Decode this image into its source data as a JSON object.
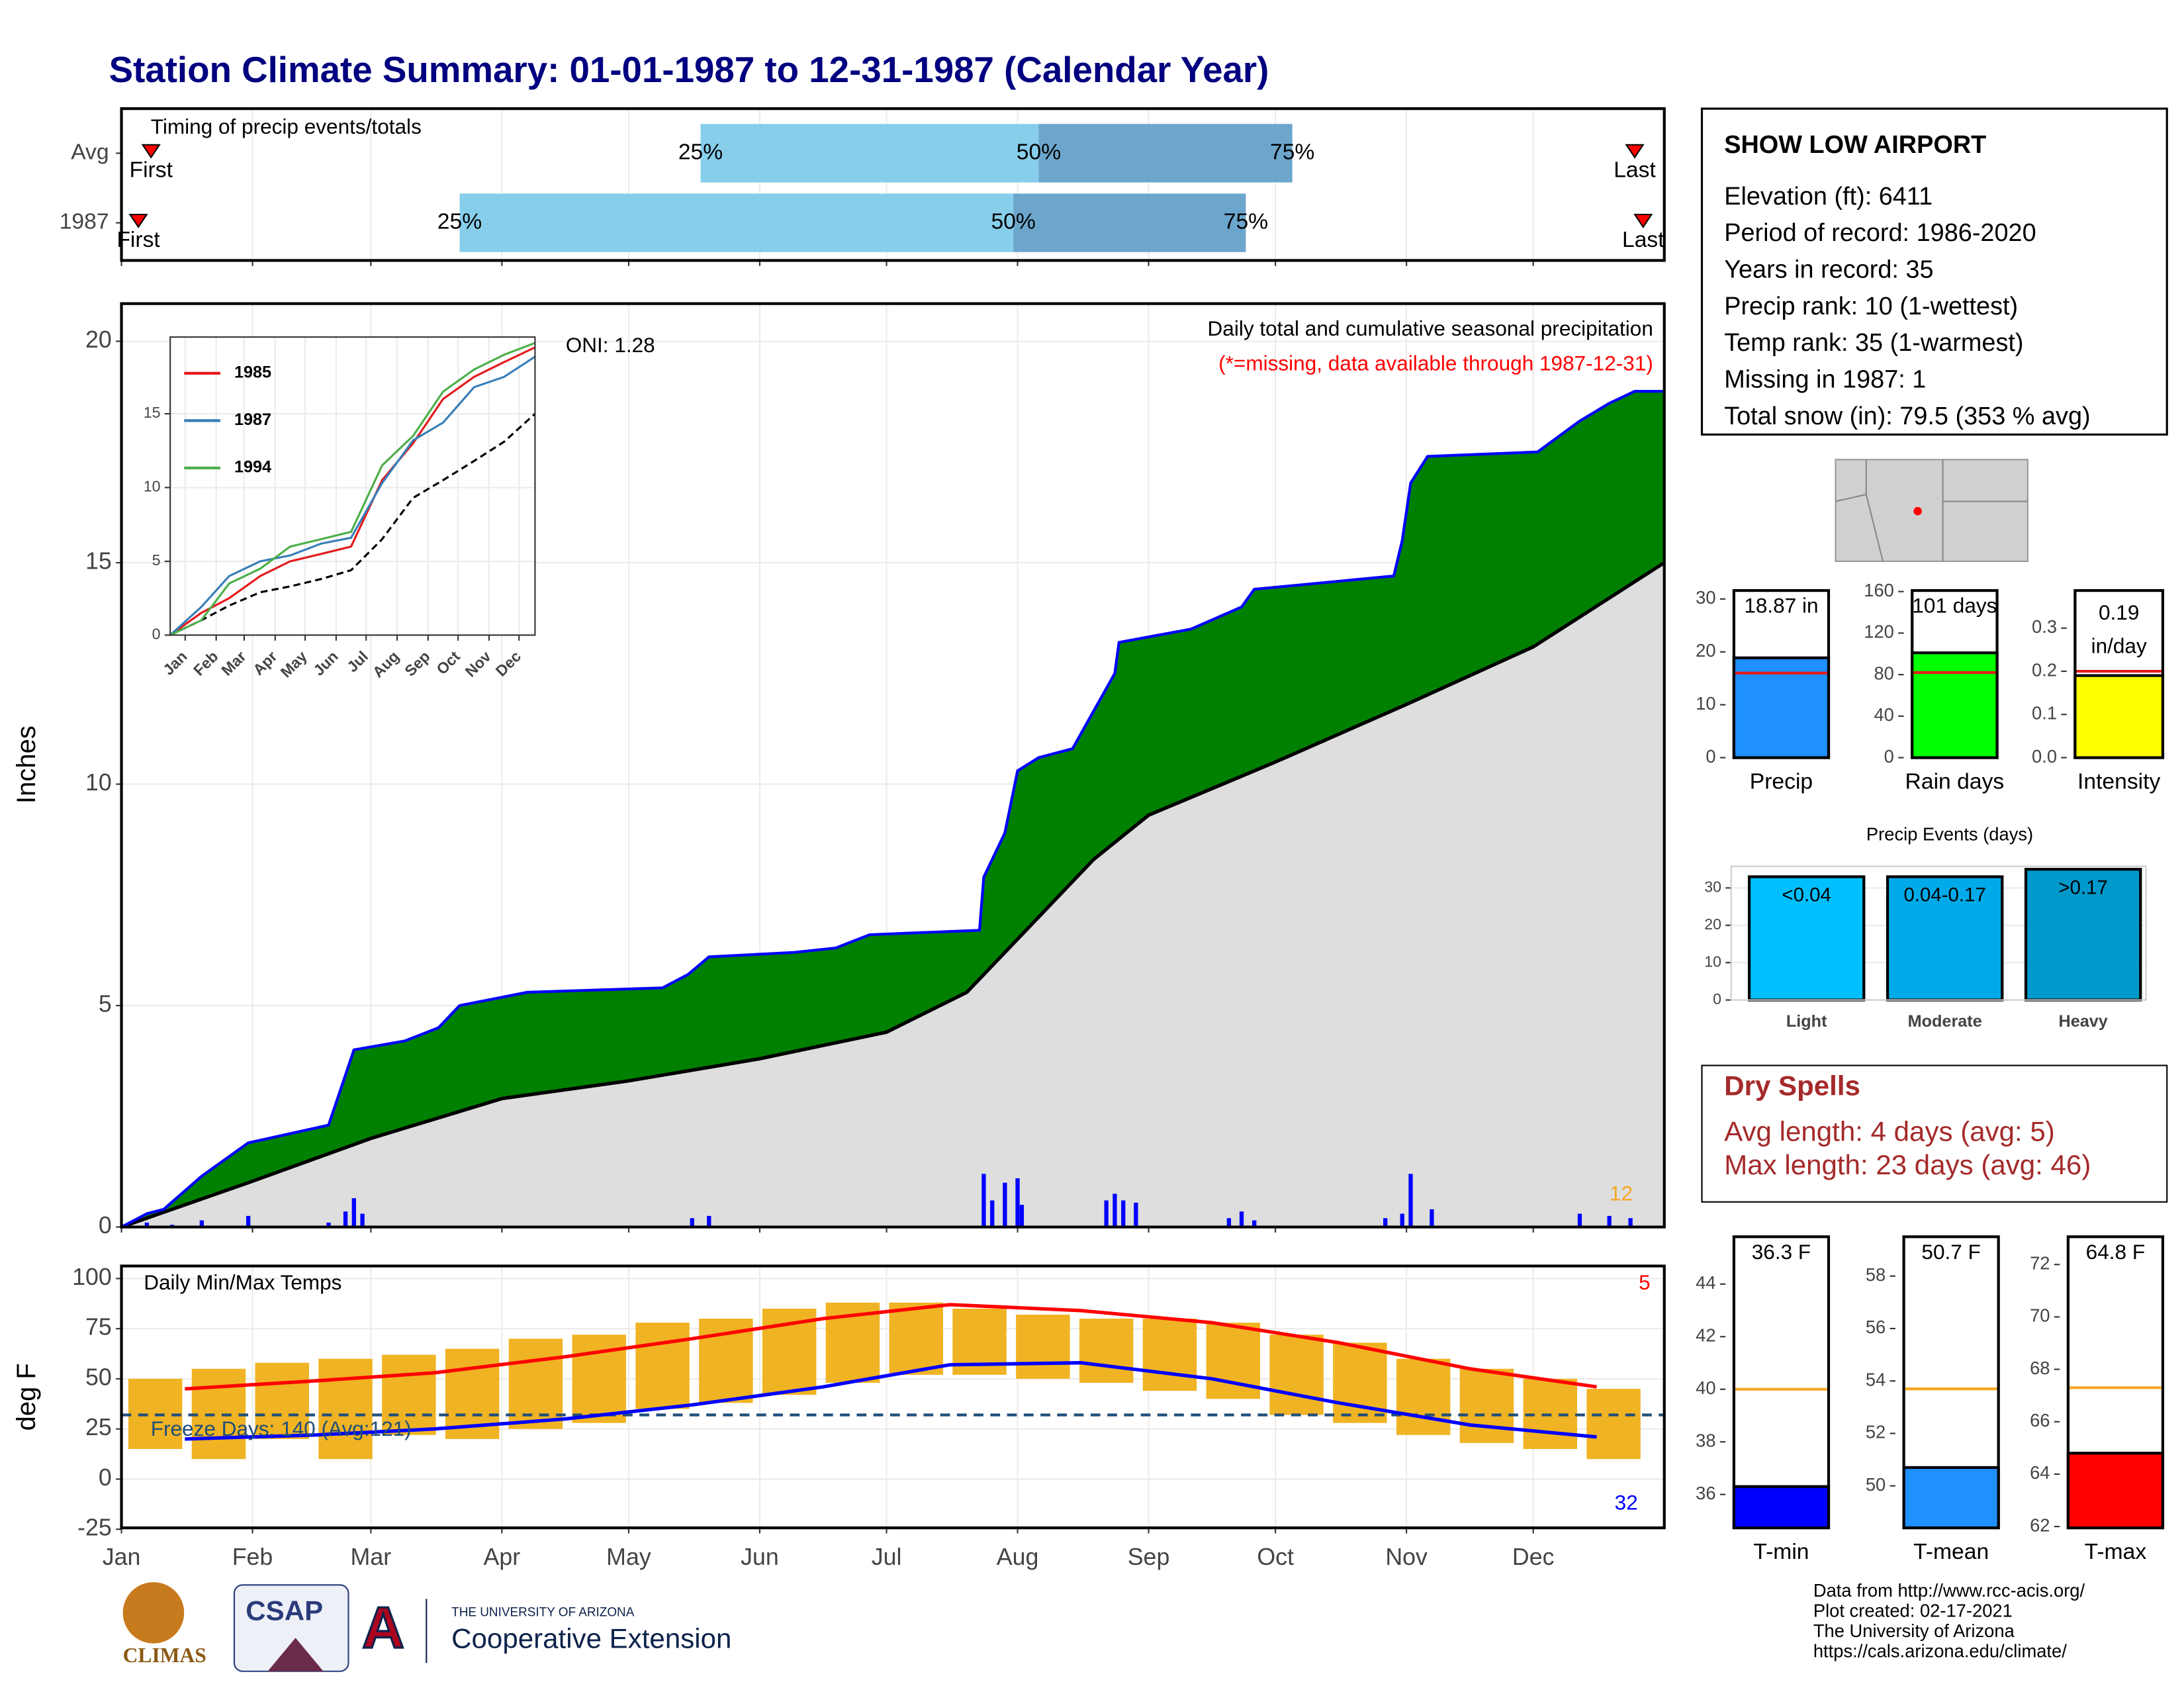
{
  "title": "Station Climate Summary: 01-01-1987 to 12-31-1987 (Calendar Year)",
  "station_info": {
    "name": "SHOW LOW AIRPORT",
    "lines": [
      "Elevation (ft): 6411",
      "Period of record: 1986-2020",
      "Years in record: 35",
      "Precip rank: 10 (1-wettest)",
      "Temp rank: 35 (1-warmest)",
      "Missing in 1987: 1",
      "Total snow (in): 79.5 (353 % avg)"
    ]
  },
  "dry_spells": {
    "title": "Dry Spells",
    "lines": [
      "Avg length: 4 days (avg: 5)",
      "Max length: 23 days (avg: 46)"
    ]
  },
  "footer": {
    "logos": [
      "CLIMAS",
      "CSAP",
      "THE UNIVERSITY OF ARIZONA",
      "Cooperative Extension"
    ],
    "credits": [
      "Data from http://www.rcc-acis.org/",
      "Plot created: 02-17-2021",
      "The University of Arizona",
      "https://cals.arizona.edu/climate/"
    ]
  },
  "chart_data": [
    {
      "type": "timeline",
      "title": "Timing of precip events/totals",
      "categories": [
        "Avg",
        "1987"
      ],
      "first": [
        7,
        4
      ],
      "q25": [
        137,
        80
      ],
      "q50": [
        217,
        211
      ],
      "q75": [
        277,
        266
      ],
      "last": [
        358,
        360
      ],
      "first_label": "First",
      "last_label": "Last",
      "quantile_labels": [
        "25%",
        "50%",
        "75%"
      ],
      "colors": [
        "#87ceeb",
        "#6ca6cd"
      ],
      "xlim": [
        0,
        365
      ],
      "xticks": [
        0,
        31,
        59,
        90,
        120,
        151,
        181,
        212,
        243,
        273,
        304,
        334
      ]
    },
    {
      "type": "precip",
      "title": "Daily total and cumulative seasonal precipitation",
      "subtitle": "(*=missing, data available through 1987-12-31)",
      "oni": "ONI: 1.28",
      "count_label": "12",
      "ylabel": "Inches",
      "xlim": [
        0,
        365
      ],
      "xticks": [
        0,
        31,
        59,
        90,
        120,
        151,
        181,
        212,
        243,
        273,
        304,
        334
      ],
      "ylim": [
        0,
        20.85
      ],
      "yticks": [
        0,
        5,
        10,
        15,
        20
      ],
      "grid": true,
      "cumulative": {
        "color": "#008000",
        "line_color": "#0000ff",
        "x": [
          0,
          6,
          10,
          19,
          30,
          49,
          55,
          67,
          75,
          80,
          96,
          128,
          134,
          139,
          159,
          169,
          177,
          203,
          204,
          209,
          212,
          217,
          225,
          235,
          236,
          253,
          265,
          268,
          301,
          303,
          305,
          309,
          335,
          345,
          352,
          358,
          365
        ],
        "values": [
          0,
          0.3,
          0.4,
          1.15,
          1.9,
          2.3,
          4.0,
          4.2,
          4.5,
          5.0,
          5.3,
          5.4,
          5.7,
          6.1,
          6.2,
          6.3,
          6.6,
          6.7,
          7.9,
          8.9,
          10.3,
          10.6,
          10.8,
          12.5,
          13.2,
          13.5,
          14.0,
          14.4,
          14.7,
          15.5,
          16.8,
          17.4,
          17.5,
          18.2,
          18.6,
          18.87,
          18.87
        ]
      },
      "average_cumulative": {
        "color": "#dedede",
        "x": [
          0,
          30,
          59,
          90,
          120,
          151,
          181,
          200,
          212,
          230,
          243,
          273,
          304,
          334,
          365
        ],
        "values": [
          0,
          1.0,
          2.0,
          2.9,
          3.3,
          3.8,
          4.4,
          5.3,
          6.5,
          8.3,
          9.3,
          10.5,
          11.8,
          13.1,
          15.0
        ]
      },
      "daily": {
        "color": "#0000ff",
        "x": [
          6,
          12,
          19,
          30,
          49,
          53,
          55,
          57,
          135,
          139,
          204,
          206,
          209,
          212,
          213,
          233,
          235,
          237,
          240,
          262,
          265,
          268,
          299,
          303,
          305,
          310,
          345,
          352,
          357
        ],
        "values": [
          0.1,
          0.05,
          0.15,
          0.25,
          0.1,
          0.35,
          0.65,
          0.3,
          0.2,
          0.25,
          1.2,
          0.6,
          1.0,
          1.1,
          0.5,
          0.6,
          0.75,
          0.6,
          0.55,
          0.2,
          0.35,
          0.15,
          0.2,
          0.3,
          1.2,
          0.4,
          0.3,
          0.25,
          0.2
        ]
      }
    },
    {
      "type": "line",
      "x": [
        0,
        31,
        59,
        90,
        120,
        151,
        181,
        212,
        243,
        273,
        304,
        334,
        365
      ],
      "xlim": [
        0,
        365
      ],
      "xticks": [
        {
          "value": 15,
          "label": "Jan"
        },
        {
          "value": 46,
          "label": "Feb"
        },
        {
          "value": 74,
          "label": "Mar"
        },
        {
          "value": 105,
          "label": "Apr"
        },
        {
          "value": 135,
          "label": "May"
        },
        {
          "value": 166,
          "label": "Jun"
        },
        {
          "value": 196,
          "label": "Jul"
        },
        {
          "value": 227,
          "label": "Aug"
        },
        {
          "value": 258,
          "label": "Sep"
        },
        {
          "value": 288,
          "label": "Oct"
        },
        {
          "value": 319,
          "label": "Nov"
        },
        {
          "value": 349,
          "label": "Dec"
        }
      ],
      "ylim": [
        0,
        20.2
      ],
      "yticks": [
        0,
        5,
        10,
        15
      ],
      "series": [
        {
          "name": "1985",
          "color": "#e41a1c",
          "values": [
            0,
            1.5,
            2.5,
            4.0,
            5.0,
            5.5,
            6.0,
            10.5,
            13.0,
            16.0,
            17.5,
            18.5,
            19.5
          ]
        },
        {
          "name": "1987",
          "color": "#377eb8",
          "values": [
            0,
            1.9,
            4.0,
            5.0,
            5.4,
            6.2,
            6.6,
            10.3,
            13.2,
            14.4,
            16.8,
            17.5,
            18.87
          ]
        },
        {
          "name": "1994",
          "color": "#4daf4a",
          "values": [
            0,
            1.0,
            3.5,
            4.5,
            6.0,
            6.5,
            7.0,
            11.5,
            13.5,
            16.5,
            18.0,
            19.0,
            19.8
          ]
        }
      ],
      "average": {
        "color": "#000000",
        "values": [
          0,
          1.0,
          2.0,
          2.9,
          3.3,
          3.8,
          4.4,
          6.5,
          9.3,
          10.5,
          11.8,
          13.1,
          15.0
        ]
      }
    },
    {
      "type": "range",
      "title": "Daily Min/Max Temps",
      "ylabel": "deg F",
      "freeze_label": "Freeze Days: 140 (Avg:121)",
      "high_count_label": "5",
      "low_count_label": "32",
      "freeze_threshold": 32,
      "xlim": [
        0,
        365
      ],
      "xticks": [
        {
          "value": 0,
          "label": "Jan"
        },
        {
          "value": 31,
          "label": "Feb"
        },
        {
          "value": 59,
          "label": "Mar"
        },
        {
          "value": 90,
          "label": "Apr"
        },
        {
          "value": 120,
          "label": "May"
        },
        {
          "value": 151,
          "label": "Jun"
        },
        {
          "value": 181,
          "label": "Jul"
        },
        {
          "value": 212,
          "label": "Aug"
        },
        {
          "value": 243,
          "label": "Sep"
        },
        {
          "value": 273,
          "label": "Oct"
        },
        {
          "value": 304,
          "label": "Nov"
        },
        {
          "value": 334,
          "label": "Dec"
        }
      ],
      "ylim": [
        -24.3,
        106.25
      ],
      "yticks": [
        100,
        75,
        50,
        25,
        0,
        -25
      ],
      "grid": true,
      "color": "#f0b323",
      "x": [
        8,
        23,
        38,
        53,
        68,
        83,
        98,
        113,
        128,
        143,
        158,
        173,
        188,
        203,
        218,
        233,
        248,
        263,
        278,
        293,
        308,
        323,
        338,
        353
      ],
      "max": [
        50,
        55,
        58,
        60,
        62,
        65,
        70,
        72,
        78,
        80,
        85,
        88,
        88,
        85,
        82,
        80,
        80,
        78,
        72,
        68,
        60,
        55,
        50,
        45
      ],
      "min": [
        15,
        10,
        20,
        10,
        22,
        20,
        25,
        28,
        35,
        38,
        42,
        48,
        52,
        52,
        50,
        48,
        44,
        40,
        32,
        28,
        22,
        18,
        15,
        10
      ],
      "normal_x": [
        15,
        46,
        74,
        105,
        135,
        166,
        196,
        227,
        258,
        288,
        319,
        349
      ],
      "normal_max": {
        "color": "#ff0000",
        "values": [
          45,
          49,
          53,
          61,
          70,
          80,
          87,
          84,
          78,
          68,
          55,
          46
        ]
      },
      "normal_min": {
        "color": "#0000ff",
        "values": [
          20,
          22,
          25,
          30,
          37,
          46,
          57,
          58,
          50,
          38,
          27,
          21
        ]
      }
    },
    {
      "type": "bar",
      "categories": [
        "Precip"
      ],
      "values": [
        18.87
      ],
      "value_labels": [
        "18.87 in"
      ],
      "normal": 16,
      "normal_color": "#e41a1c",
      "color": "#1e90ff",
      "ylim": [
        0,
        31.6
      ],
      "yticks": [
        0,
        10,
        20,
        30
      ]
    },
    {
      "type": "bar",
      "categories": [
        "Rain days"
      ],
      "values": [
        101
      ],
      "value_labels": [
        "101 days"
      ],
      "normal": 82,
      "normal_color": "#e41a1c",
      "color": "#00ff00",
      "ylim": [
        0,
        161
      ],
      "yticks": [
        0,
        40,
        80,
        120,
        160
      ]
    },
    {
      "type": "bar",
      "categories": [
        "Intensity"
      ],
      "values": [
        0.19
      ],
      "value_labels": [
        "0.19 in/day"
      ],
      "normal": 0.2,
      "normal_color": "#e41a1c",
      "color": "#ffff00",
      "ylim": [
        0,
        0.387
      ],
      "yticks": [
        {
          "value": 0,
          "label": "0.0"
        },
        0.1,
        0.2,
        0.3
      ]
    },
    {
      "type": "events",
      "title": "Precip Events (days)",
      "categories": [
        "Light",
        "Moderate",
        "Heavy"
      ],
      "values": [
        33,
        33,
        35
      ],
      "value_labels": [
        "<0.04",
        "0.04-0.17",
        ">0.17"
      ],
      "colors": [
        "#00bfff",
        "#00aae8",
        "#0099cc"
      ],
      "ylim": [
        0,
        35.8
      ],
      "yticks": [
        0,
        10,
        20,
        30
      ]
    },
    {
      "type": "bar",
      "categories": [
        "T-min"
      ],
      "values": [
        36.3
      ],
      "value_labels": [
        "36.3 F"
      ],
      "normal": 40,
      "normal_color": "#f5a623",
      "color": "#0000ff",
      "ylim": [
        34.73,
        45.8
      ],
      "yticks": [
        36,
        38,
        40,
        42,
        44
      ]
    },
    {
      "type": "bar",
      "categories": [
        "T-mean"
      ],
      "values": [
        50.7
      ],
      "value_labels": [
        "50.7 F"
      ],
      "normal": 53.7,
      "normal_color": "#f5a623",
      "color": "#1e90ff",
      "ylim": [
        48.4,
        59.5
      ],
      "yticks": [
        50,
        52,
        54,
        56,
        58
      ]
    },
    {
      "type": "bar",
      "categories": [
        "T-max"
      ],
      "values": [
        64.8
      ],
      "value_labels": [
        "64.8 F"
      ],
      "normal": 67.3,
      "normal_color": "#f5a623",
      "color": "#ff0000",
      "ylim": [
        61.95,
        73.06
      ],
      "yticks": [
        62,
        64,
        66,
        68,
        70,
        72
      ]
    }
  ]
}
